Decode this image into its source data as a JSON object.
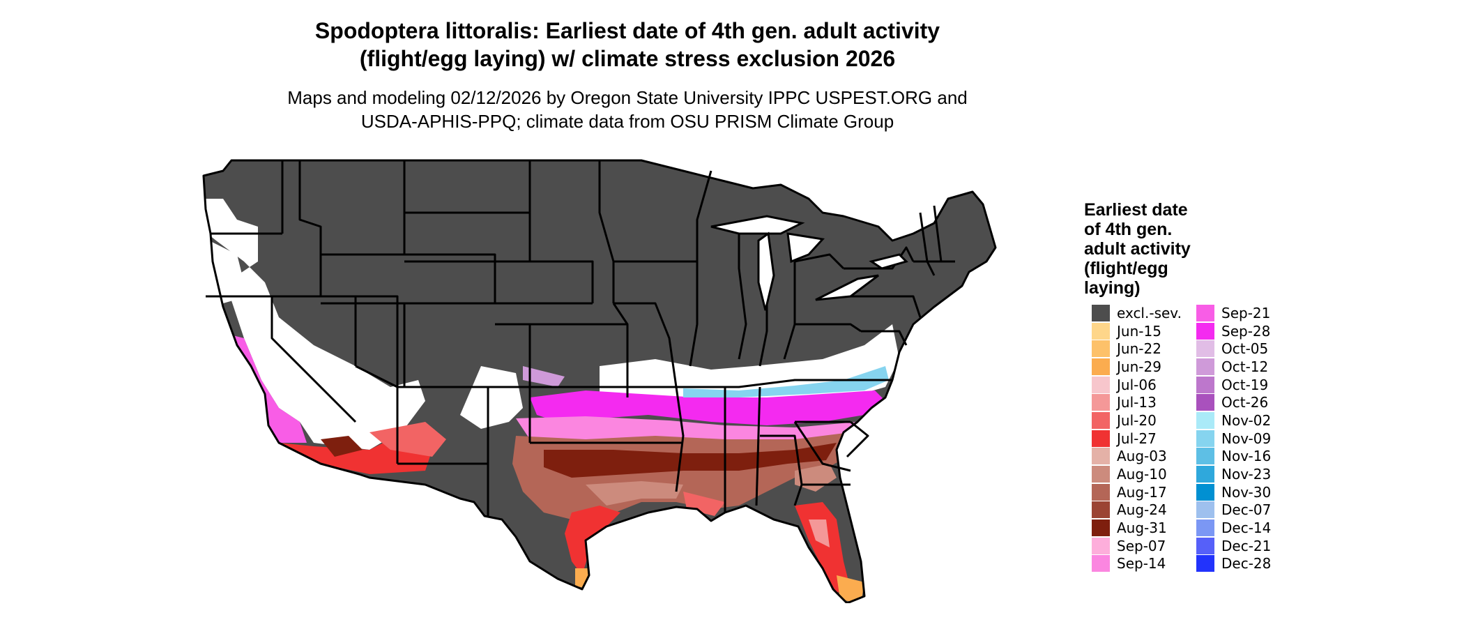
{
  "title_line1": "Spodoptera littoralis: Earliest date of 4th gen. adult activity",
  "title_line2": "(flight/egg laying) w/ climate stress exclusion 2026",
  "subtitle_line1": "Maps and modeling 02/12/2026 by Oregon State University IPPC USPEST.ORG and",
  "subtitle_line2": "USDA-APHIS-PPQ; climate data from OSU PRISM Climate Group",
  "legend": {
    "title_lines": [
      "Earliest date",
      "of 4th gen.",
      "adult activity",
      "(flight/egg",
      "laying)"
    ],
    "col1": [
      {
        "label": "excl.-sev.",
        "color": "#4d4d4d"
      },
      {
        "label": "Jun-15",
        "color": "#fed68a"
      },
      {
        "label": "Jun-22",
        "color": "#fdc16a"
      },
      {
        "label": "Jun-29",
        "color": "#fbac4f"
      },
      {
        "label": "Jul-06",
        "color": "#f7c6cc"
      },
      {
        "label": "Jul-13",
        "color": "#f49898"
      },
      {
        "label": "Jul-20",
        "color": "#f26464"
      },
      {
        "label": "Jul-27",
        "color": "#f03232"
      },
      {
        "label": "Aug-03",
        "color": "#e4b1a7"
      },
      {
        "label": "Aug-10",
        "color": "#cc8b7d"
      },
      {
        "label": "Aug-17",
        "color": "#b46657"
      },
      {
        "label": "Aug-24",
        "color": "#9b4434"
      },
      {
        "label": "Aug-31",
        "color": "#7e1f0e"
      },
      {
        "label": "Sep-07",
        "color": "#fdaedb"
      },
      {
        "label": "Sep-14",
        "color": "#fb86e0"
      }
    ],
    "col2": [
      {
        "label": "Sep-21",
        "color": "#f85de6"
      },
      {
        "label": "Sep-28",
        "color": "#f42af0"
      },
      {
        "label": "Oct-05",
        "color": "#e1bde6"
      },
      {
        "label": "Oct-12",
        "color": "#cf9ad9"
      },
      {
        "label": "Oct-19",
        "color": "#bd77cc"
      },
      {
        "label": "Oct-26",
        "color": "#a951bd"
      },
      {
        "label": "Nov-02",
        "color": "#aaeaf8"
      },
      {
        "label": "Nov-09",
        "color": "#86d4ef"
      },
      {
        "label": "Nov-16",
        "color": "#5ebfe5"
      },
      {
        "label": "Nov-23",
        "color": "#2fa8dc"
      },
      {
        "label": "Nov-30",
        "color": "#0190d2"
      },
      {
        "label": "Dec-07",
        "color": "#9ec0ee"
      },
      {
        "label": "Dec-14",
        "color": "#7b97f4"
      },
      {
        "label": "Dec-21",
        "color": "#5660f9"
      },
      {
        "label": "Dec-28",
        "color": "#2233fc"
      }
    ]
  }
}
